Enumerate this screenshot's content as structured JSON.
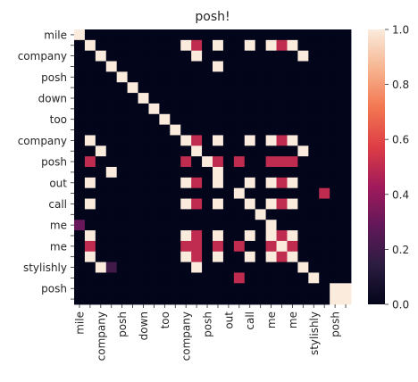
{
  "chart_data": {
    "type": "heatmap",
    "title": "posh!",
    "xlabel": "",
    "ylabel": "",
    "row_labels": [
      "mile",
      "",
      "company",
      "",
      "posh",
      "",
      "down",
      "",
      "too",
      "",
      "company",
      "",
      "posh",
      "",
      "out",
      "",
      "call",
      "",
      "me",
      "",
      "me",
      "",
      "stylishly",
      "",
      "posh",
      ""
    ],
    "col_labels": [
      "mile",
      "",
      "company",
      "",
      "posh",
      "",
      "down",
      "",
      "too",
      "",
      "company",
      "",
      "posh",
      "",
      "out",
      "",
      "call",
      "",
      "me",
      "",
      "me",
      "",
      "stylishly",
      "",
      "posh",
      ""
    ],
    "matrix": [
      [
        1,
        0,
        0,
        0,
        0,
        0,
        0,
        0,
        0,
        0,
        0,
        0,
        0,
        0,
        0,
        0,
        0,
        0,
        0,
        0,
        0,
        0,
        0,
        0,
        0,
        0
      ],
      [
        0,
        1,
        0,
        0,
        0,
        0,
        0,
        0,
        0,
        0,
        1,
        0.5,
        0,
        1,
        0,
        0,
        1,
        0,
        1,
        0.5,
        1,
        0,
        0,
        0,
        0,
        0
      ],
      [
        0,
        0,
        1,
        0,
        0,
        0,
        0,
        0,
        0,
        0,
        0,
        1,
        0,
        0,
        0,
        0,
        0,
        0,
        0,
        0,
        0,
        1,
        0,
        0,
        0,
        0
      ],
      [
        0,
        0,
        0,
        1,
        0,
        0,
        0,
        0,
        0,
        0,
        0,
        0,
        0,
        1,
        0,
        0,
        0,
        0,
        0,
        0,
        0,
        0,
        0,
        0,
        0,
        0
      ],
      [
        0,
        0,
        0,
        0,
        1,
        0,
        0,
        0,
        0,
        0,
        0,
        0,
        0,
        0,
        0,
        0,
        0,
        0,
        0,
        0,
        0,
        0,
        0,
        0,
        0,
        0
      ],
      [
        0,
        0,
        0,
        0,
        0,
        1,
        0,
        0,
        0,
        0,
        0,
        0,
        0,
        0,
        0,
        0,
        0,
        0,
        0,
        0,
        0,
        0,
        0,
        0,
        0,
        0
      ],
      [
        0,
        0,
        0,
        0,
        0,
        0,
        1,
        0,
        0,
        0,
        0,
        0,
        0,
        0,
        0,
        0,
        0,
        0,
        0,
        0,
        0,
        0,
        0,
        0,
        0,
        0
      ],
      [
        0,
        0,
        0,
        0,
        0,
        0,
        0,
        1,
        0,
        0,
        0,
        0,
        0,
        0,
        0,
        0,
        0,
        0,
        0,
        0,
        0,
        0,
        0,
        0,
        0,
        0
      ],
      [
        0,
        0,
        0,
        0,
        0,
        0,
        0,
        0,
        1,
        0,
        0,
        0,
        0,
        0,
        0,
        0,
        0,
        0,
        0,
        0,
        0,
        0,
        0,
        0,
        0,
        0
      ],
      [
        0,
        0,
        0,
        0,
        0,
        0,
        0,
        0,
        0,
        1,
        0,
        0,
        0,
        0,
        0,
        0,
        0,
        0,
        0,
        0,
        0,
        0,
        0,
        0,
        0,
        0
      ],
      [
        0,
        1,
        0,
        0,
        0,
        0,
        0,
        0,
        0,
        0,
        1,
        0.5,
        0,
        1,
        0,
        0,
        1,
        0,
        1,
        0.5,
        1,
        0,
        0,
        0,
        0,
        0
      ],
      [
        0,
        0,
        1,
        0,
        0,
        0,
        0,
        0,
        0,
        0,
        0,
        1,
        0,
        0,
        0,
        0,
        0,
        0,
        0,
        0,
        0,
        1,
        0,
        0,
        0,
        0
      ],
      [
        0,
        0.5,
        0,
        0,
        0,
        0,
        0,
        0,
        0,
        0,
        0.5,
        0,
        1,
        0.5,
        0,
        0.5,
        0,
        0,
        0.5,
        0.5,
        0.5,
        0,
        0,
        0,
        0,
        0
      ],
      [
        0,
        0,
        0,
        1,
        0,
        0,
        0,
        0,
        0,
        0,
        0,
        0,
        0,
        1,
        0,
        0,
        0,
        0,
        0,
        0,
        0,
        0,
        0,
        0,
        0,
        0
      ],
      [
        0,
        1,
        0,
        0,
        0,
        0,
        0,
        0,
        0,
        0,
        1,
        0.5,
        0,
        1,
        0,
        0,
        1,
        0,
        1,
        0.5,
        1,
        0,
        0,
        0,
        0,
        0
      ],
      [
        0,
        0,
        0,
        0,
        0,
        0,
        0,
        0,
        0,
        0,
        0,
        0,
        0,
        0,
        0,
        1,
        0,
        0,
        0,
        0,
        0,
        0,
        0,
        0.5,
        0,
        0
      ],
      [
        0,
        1,
        0,
        0,
        0,
        0,
        0,
        0,
        0,
        0,
        1,
        0.5,
        0,
        1,
        0,
        0,
        1,
        0,
        1,
        0.5,
        1,
        0,
        0,
        0,
        0,
        0
      ],
      [
        0,
        0,
        0,
        0,
        0,
        0,
        0,
        0,
        0,
        0,
        0,
        0,
        0,
        0,
        0,
        0,
        0,
        1,
        0,
        0,
        0,
        0,
        0,
        0,
        0,
        0
      ],
      [
        0.3,
        0,
        0,
        0,
        0,
        0,
        0,
        0,
        0,
        0,
        0,
        0,
        0,
        0,
        0,
        0,
        0,
        0,
        1,
        0,
        0,
        0,
        0,
        0,
        0,
        0
      ],
      [
        0,
        1,
        0,
        0,
        0,
        0,
        0,
        0,
        0,
        0,
        1,
        0.5,
        0,
        1,
        0,
        0,
        1,
        0,
        1,
        0.5,
        1,
        0,
        0,
        0,
        0,
        0
      ],
      [
        0,
        0.5,
        0,
        0,
        0,
        0,
        0,
        0,
        0,
        0,
        0.5,
        0.5,
        0,
        0.5,
        0,
        0.5,
        0,
        0,
        0.5,
        1,
        0.5,
        0,
        0,
        0,
        0,
        0
      ],
      [
        0,
        1,
        0,
        0,
        0,
        0,
        0,
        0,
        0,
        0,
        1,
        0.5,
        0,
        1,
        0,
        0,
        1,
        0,
        1,
        0.5,
        1,
        0,
        0,
        0,
        0,
        0
      ],
      [
        0,
        0,
        1,
        0.2,
        0,
        0,
        0,
        0,
        0,
        0,
        0,
        1,
        0,
        0,
        0,
        0,
        0,
        0,
        0,
        0,
        0,
        1,
        0,
        0,
        0,
        0
      ],
      [
        0,
        0,
        0,
        0,
        0,
        0,
        0,
        0,
        0,
        0,
        0,
        0,
        0,
        0,
        0,
        0.5,
        0,
        0,
        0,
        0,
        0,
        0,
        1,
        0,
        0,
        0
      ],
      [
        0,
        0,
        0,
        0,
        0,
        0,
        0,
        0,
        0,
        0,
        0,
        0,
        0,
        0,
        0,
        0,
        0,
        0,
        0,
        0,
        0,
        0,
        0,
        0,
        1,
        1
      ],
      [
        0,
        0,
        0,
        0,
        0,
        0,
        0,
        0,
        0,
        0,
        0,
        0,
        0,
        0,
        0,
        0,
        0,
        0,
        0,
        0,
        0,
        0,
        0,
        0,
        1,
        1
      ]
    ],
    "colorbar": {
      "range": [
        0,
        1
      ],
      "ticks": [
        0.0,
        0.2,
        0.4,
        0.6,
        0.8,
        1.0
      ],
      "tick_labels": [
        "0.0",
        "0.2",
        "0.4",
        "0.6",
        "0.8",
        "1.0"
      ],
      "colormap": "rocket",
      "stops": [
        "#03051a",
        "#2b1c40",
        "#62185a",
        "#a11a5b",
        "#dd3d45",
        "#f37651",
        "#f6b48f",
        "#faebdd"
      ]
    },
    "grid": false
  }
}
